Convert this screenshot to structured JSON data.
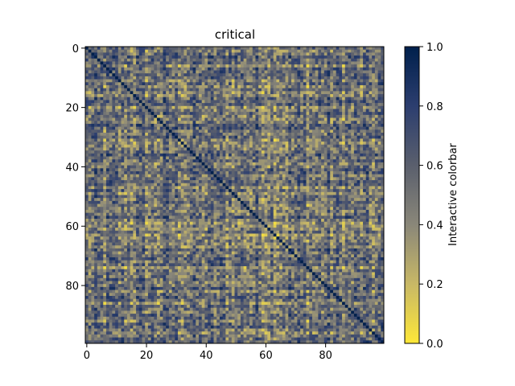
{
  "chart_data": {
    "type": "heatmap",
    "title": "critical",
    "colorbar_label": "Interactive colorbar",
    "colormap": "cividis_r",
    "colormap_stops": [
      "#fee838",
      "#c8b866",
      "#8a8779",
      "#5a5f6d",
      "#2c3e6f",
      "#00204c"
    ],
    "n_rows": 100,
    "n_cols": 100,
    "diagonal_value": 1.0,
    "value_range": [
      0.0,
      1.0
    ],
    "x_ticks": [
      0,
      20,
      40,
      60,
      80
    ],
    "y_ticks": [
      0,
      20,
      40,
      60,
      80
    ],
    "colorbar_ticks": [
      0.0,
      0.2,
      0.4,
      0.6,
      0.8,
      1.0
    ],
    "x_tick_labels": [
      "0",
      "20",
      "40",
      "60",
      "80"
    ],
    "y_tick_labels": [
      "0",
      "20",
      "40",
      "60",
      "80"
    ],
    "colorbar_tick_labels": [
      "0.0",
      "0.2",
      "0.4",
      "0.6",
      "0.8",
      "1.0"
    ],
    "matrix_values": "symmetric correlation matrix, off-diagonal values between 0.0 and 1.0, diagonal 1.0"
  }
}
